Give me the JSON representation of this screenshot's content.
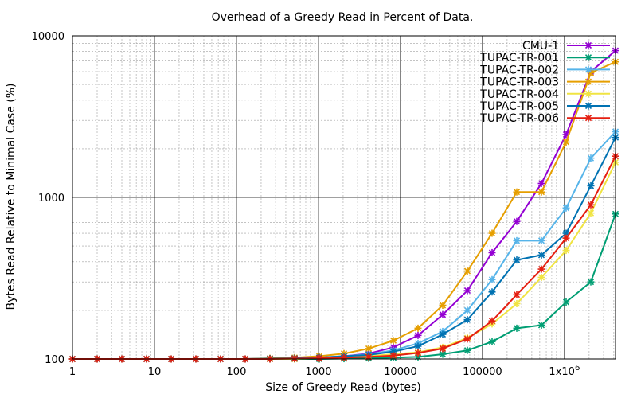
{
  "chart_data": {
    "type": "line",
    "title": "Overhead of a Greedy Read in Percent of Data.",
    "xlabel": "Size of Greedy Read (bytes)",
    "ylabel": "Bytes Read Relative to Minimal Case (%)",
    "xscale": "log",
    "yscale": "log",
    "xlim": [
      1,
      4194304
    ],
    "ylim": [
      100,
      10000
    ],
    "xticks": [
      {
        "value": 1,
        "label": "1"
      },
      {
        "value": 10,
        "label": "10"
      },
      {
        "value": 100,
        "label": "100"
      },
      {
        "value": 1000,
        "label": "1000"
      },
      {
        "value": 10000,
        "label": "10000"
      },
      {
        "value": 100000,
        "label": "100000"
      },
      {
        "value": 1000000,
        "label": "1x10^6"
      }
    ],
    "yticks": [
      {
        "value": 100,
        "label": "100"
      },
      {
        "value": 1000,
        "label": "1000"
      },
      {
        "value": 10000,
        "label": "10000"
      }
    ],
    "grid": true,
    "legend_position": "top-right",
    "x": [
      1,
      2,
      4,
      8,
      16,
      32,
      64,
      128,
      256,
      512,
      1024,
      2048,
      4096,
      8192,
      16384,
      32768,
      65536,
      131072,
      262144,
      524288,
      1048576,
      2097152,
      4194304
    ],
    "series": [
      {
        "name": "CMU-1",
        "color": "#9400d3",
        "values": [
          100,
          100,
          100,
          100,
          100,
          100,
          100,
          100,
          100.5,
          101,
          102,
          104,
          108,
          118,
          140,
          188,
          265,
          455,
          710,
          1220,
          2450,
          6000,
          8100
        ]
      },
      {
        "name": "TUPAC-TR-001",
        "color": "#009e73",
        "values": [
          100,
          100,
          100,
          100,
          100,
          100,
          100,
          100,
          100,
          100,
          100,
          100.5,
          101,
          102,
          103,
          107,
          113,
          128,
          155,
          162,
          225,
          300,
          790
        ]
      },
      {
        "name": "TUPAC-TR-002",
        "color": "#56b4e9",
        "values": [
          100,
          100,
          100,
          100,
          100,
          100,
          100,
          100,
          100.5,
          101,
          102,
          104,
          107,
          113,
          125,
          148,
          200,
          310,
          540,
          540,
          860,
          1750,
          2550
        ]
      },
      {
        "name": "TUPAC-TR-003",
        "color": "#e69f00",
        "values": [
          100,
          100,
          100,
          100,
          100,
          100,
          100,
          100,
          101,
          102,
          104,
          108,
          116,
          130,
          155,
          215,
          350,
          600,
          1080,
          1080,
          2200,
          5900,
          6900
        ]
      },
      {
        "name": "TUPAC-TR-004",
        "color": "#f0e442",
        "values": [
          100,
          100,
          100,
          100,
          100,
          100,
          100,
          100,
          100,
          100,
          101,
          102,
          104,
          107,
          110,
          118,
          135,
          165,
          220,
          320,
          470,
          800,
          1650
        ]
      },
      {
        "name": "TUPAC-TR-005",
        "color": "#0072b2",
        "values": [
          100,
          100,
          100,
          100,
          100,
          100,
          100,
          100,
          100.5,
          101,
          102,
          104,
          106,
          111,
          120,
          142,
          175,
          260,
          410,
          440,
          600,
          1180,
          2350
        ]
      },
      {
        "name": "TUPAC-TR-006",
        "color": "#e51e10",
        "values": [
          100,
          100,
          100,
          100,
          100,
          100,
          100,
          100,
          100,
          100.5,
          101,
          102,
          103,
          105,
          109,
          116,
          133,
          172,
          250,
          360,
          560,
          900,
          1800
        ]
      }
    ]
  }
}
